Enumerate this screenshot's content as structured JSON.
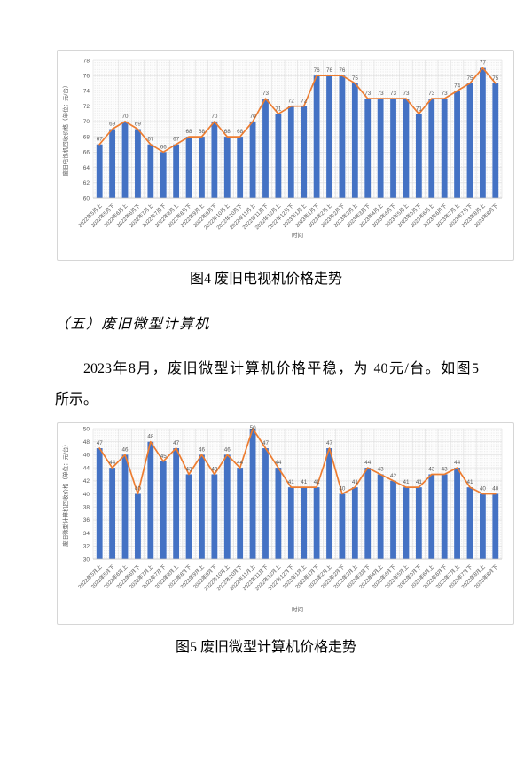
{
  "page": {
    "figure4_caption": "图4 废旧电视机价格走势",
    "section_heading": "（五）废旧微型计算机",
    "paragraph_line1": "2023年8月，废旧微型计算机价格平稳，为 40元/台。如图5",
    "paragraph_line2": "所示。",
    "figure5_caption": "图5 废旧微型计算机价格走势"
  },
  "colors": {
    "bar": "#4472C4",
    "line": "#ED7D31",
    "text": "#595959",
    "grid": "#dedede",
    "axis": "#bfbfbf",
    "pattern_dot": "#e9e9e9"
  },
  "chart_data": [
    {
      "type": "bar",
      "overlay": "line",
      "title": "",
      "xlabel": "时间",
      "ylabel": "废旧电视机回收价格（单位：元/台）",
      "ylim": [
        60,
        78
      ],
      "ytick_step": 2,
      "grid": true,
      "legend": "none",
      "categories": [
        "2022年5月上",
        "2022年5月下",
        "2022年6月上",
        "2022年6月下",
        "2022年7月上",
        "2022年7月下",
        "2022年8月上",
        "2022年8月下",
        "2022年9月上",
        "2022年9月下",
        "2022年10月上",
        "2022年10月下",
        "2022年11月上",
        "2022年11月下",
        "2022年12月上",
        "2022年12月下",
        "2023年1月上",
        "2023年1月下",
        "2023年2月上",
        "2023年2月下",
        "2023年3月上",
        "2023年3月下",
        "2023年4月上",
        "2023年4月下",
        "2023年5月上",
        "2023年5月下",
        "2023年6月上",
        "2023年6月下",
        "2023年7月上",
        "2023年7月下",
        "2023年8月上",
        "2023年8月下"
      ],
      "values": [
        67,
        69,
        70,
        69,
        67,
        66,
        67,
        68,
        68,
        70,
        68,
        68,
        70,
        73,
        71,
        72,
        72,
        76,
        76,
        76,
        75,
        73,
        73,
        73,
        73,
        71,
        73,
        73,
        74,
        75,
        77,
        75
      ]
    },
    {
      "type": "bar",
      "overlay": "line",
      "title": "",
      "xlabel": "时间",
      "ylabel": "废旧微型计算机回收价格（单位：元/台）",
      "ylim": [
        30,
        50
      ],
      "ytick_step": 2,
      "grid": true,
      "legend": "none",
      "categories": [
        "2022年5月上",
        "2022年5月下",
        "2022年6月上",
        "2022年6月下",
        "2022年7月上",
        "2022年7月下",
        "2022年8月上",
        "2022年8月下",
        "2022年9月上",
        "2022年9月下",
        "2022年10月上",
        "2022年10月下",
        "2022年11月上",
        "2022年11月下",
        "2022年12月上",
        "2022年12月下",
        "2023年1月上",
        "2023年1月下",
        "2023年2月上",
        "2023年2月下",
        "2023年3月上",
        "2023年3月下",
        "2023年4月上",
        "2023年4月下",
        "2023年5月上",
        "2023年5月下",
        "2023年6月上",
        "2023年6月下",
        "2023年7月上",
        "2023年7月下",
        "2023年8月上",
        "2023年8月下"
      ],
      "values": [
        47,
        44,
        46,
        40,
        48,
        45,
        47,
        43,
        46,
        43,
        46,
        44,
        50,
        47,
        44,
        41,
        41,
        41,
        47,
        40,
        41,
        44,
        43,
        42,
        41,
        41,
        43,
        43,
        44,
        41,
        40,
        40
      ]
    }
  ]
}
